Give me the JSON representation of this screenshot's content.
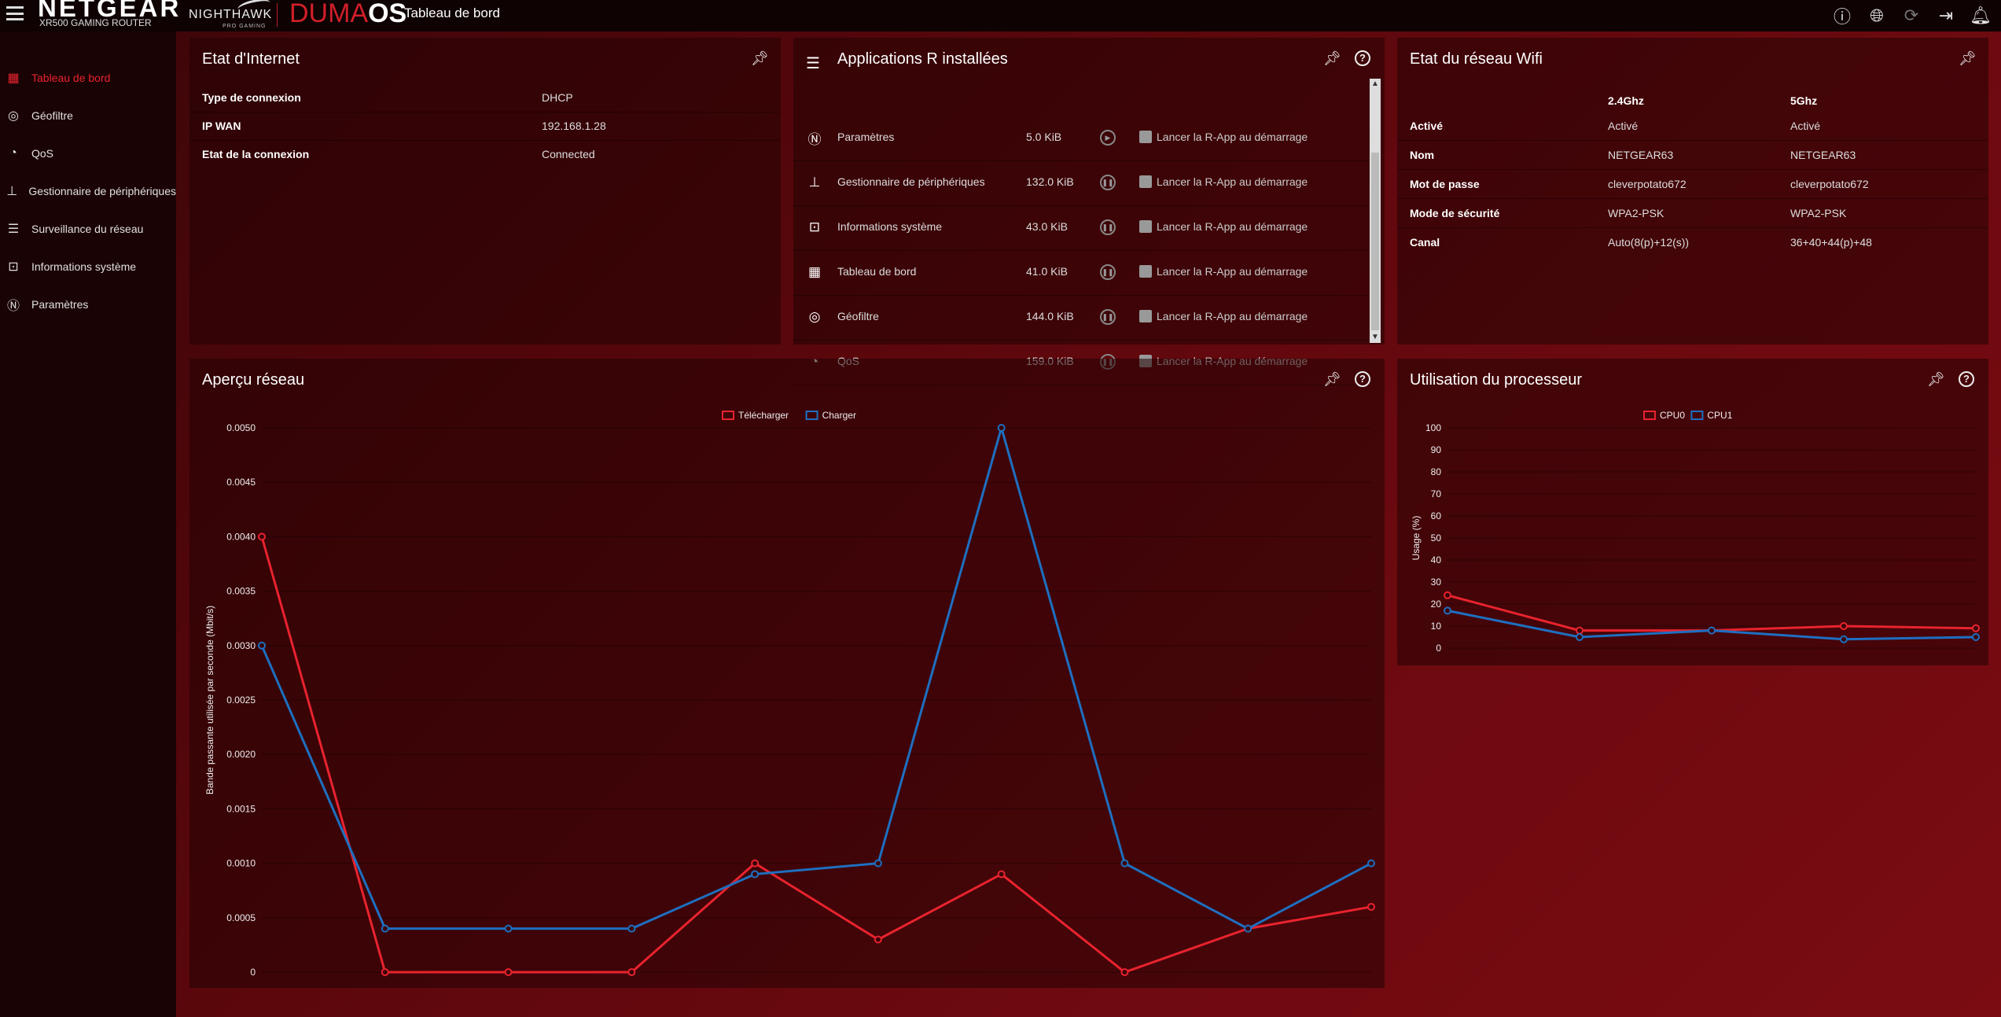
{
  "header": {
    "brand": "NETGEAR",
    "brand_sub": "XR500 GAMING ROUTER",
    "nighthawk": "NIGHTHAWK",
    "nighthawk_sub": "PRO GAMING",
    "duma_a": "DUMA",
    "duma_b": "OS",
    "page_title": "Tableau de bord",
    "icons": [
      "info-icon",
      "globe-icon",
      "refresh-icon",
      "logout-icon",
      "bell-icon"
    ]
  },
  "sidebar": {
    "items": [
      {
        "label": "Tableau de bord",
        "icon": "dashboard-icon",
        "active": true
      },
      {
        "label": "Géofiltre",
        "icon": "geofilter-icon"
      },
      {
        "label": "QoS",
        "icon": "qos-icon"
      },
      {
        "label": "Gestionnaire de périphériques",
        "icon": "devices-icon"
      },
      {
        "label": "Surveillance du réseau",
        "icon": "network-monitor-icon"
      },
      {
        "label": "Informations système",
        "icon": "system-info-icon"
      },
      {
        "label": "Paramètres",
        "icon": "settings-icon"
      }
    ]
  },
  "internet": {
    "title": "Etat d'Internet",
    "rows": [
      {
        "k": "Type de connexion",
        "v": "DHCP"
      },
      {
        "k": "IP WAN",
        "v": "192.168.1.28"
      },
      {
        "k": "Etat de la connexion",
        "v": "Connected"
      }
    ]
  },
  "apps": {
    "title": "Applications R installées",
    "launch_label": "Lancer la R-App au démarrage",
    "rows": [
      {
        "name": "Paramètres",
        "size": "5.0 KiB",
        "control": "play"
      },
      {
        "name": "Gestionnaire de périphériques",
        "size": "132.0 KiB",
        "control": "pause"
      },
      {
        "name": "Informations système",
        "size": "43.0 KiB",
        "control": "pause"
      },
      {
        "name": "Tableau de bord",
        "size": "41.0 KiB",
        "control": "pause"
      },
      {
        "name": "Géofiltre",
        "size": "144.0 KiB",
        "control": "pause"
      },
      {
        "name": "QoS",
        "size": "159.0 KiB",
        "control": "pause"
      }
    ]
  },
  "wifi": {
    "title": "Etat du réseau Wifi",
    "col_24": "2.4Ghz",
    "col_5": "5Ghz",
    "rows": [
      {
        "k": "Activé",
        "a": "Activé",
        "b": "Activé"
      },
      {
        "k": "Nom",
        "a": "NETGEAR63",
        "b": "NETGEAR63"
      },
      {
        "k": "Mot de passe",
        "a": "cleverpotato672",
        "b": "cleverpotato672"
      },
      {
        "k": "Mode de sécurité",
        "a": "WPA2-PSK",
        "b": "WPA2-PSK"
      },
      {
        "k": "Canal",
        "a": "Auto(8(p)+12(s))",
        "b": "36+40+44(p)+48"
      }
    ]
  },
  "network_title": "Aperçu réseau",
  "cpu_title": "Utilisation du processeur",
  "chart_data": [
    {
      "type": "line",
      "title": "",
      "ylabel": "Bande passante utilisée par seconde (Mbit/s)",
      "xlabel": "",
      "ylim": [
        0,
        0.005
      ],
      "yticks": [
        "0",
        "0.0005",
        "0.0010",
        "0.0015",
        "0.0020",
        "0.0025",
        "0.0030",
        "0.0035",
        "0.0040",
        "0.0045",
        "0.0050"
      ],
      "grid": true,
      "legend": "top-center",
      "series": [
        {
          "name": "Télécharger",
          "color": "#e8232e",
          "values": [
            0.004,
            0,
            0,
            0,
            0.001,
            0.0003,
            0.0009,
            0,
            0.0004,
            0.0006
          ]
        },
        {
          "name": "Charger",
          "color": "#1e6fc0",
          "values": [
            0.003,
            0.0004,
            0.0004,
            0.0004,
            0.0009,
            0.001,
            0.005,
            0.001,
            0.0004,
            0.001
          ]
        }
      ]
    },
    {
      "type": "line",
      "title": "",
      "ylabel": "Usage (%)",
      "xlabel": "",
      "ylim": [
        0,
        100
      ],
      "yticks": [
        "0",
        "10",
        "20",
        "30",
        "40",
        "50",
        "60",
        "70",
        "80",
        "90",
        "100"
      ],
      "grid": true,
      "legend": "top-center",
      "series": [
        {
          "name": "CPU0",
          "color": "#e8232e",
          "values": [
            24,
            8,
            8,
            10,
            9
          ]
        },
        {
          "name": "CPU1",
          "color": "#1e6fc0",
          "values": [
            17,
            5,
            8,
            4,
            5
          ]
        }
      ]
    }
  ]
}
